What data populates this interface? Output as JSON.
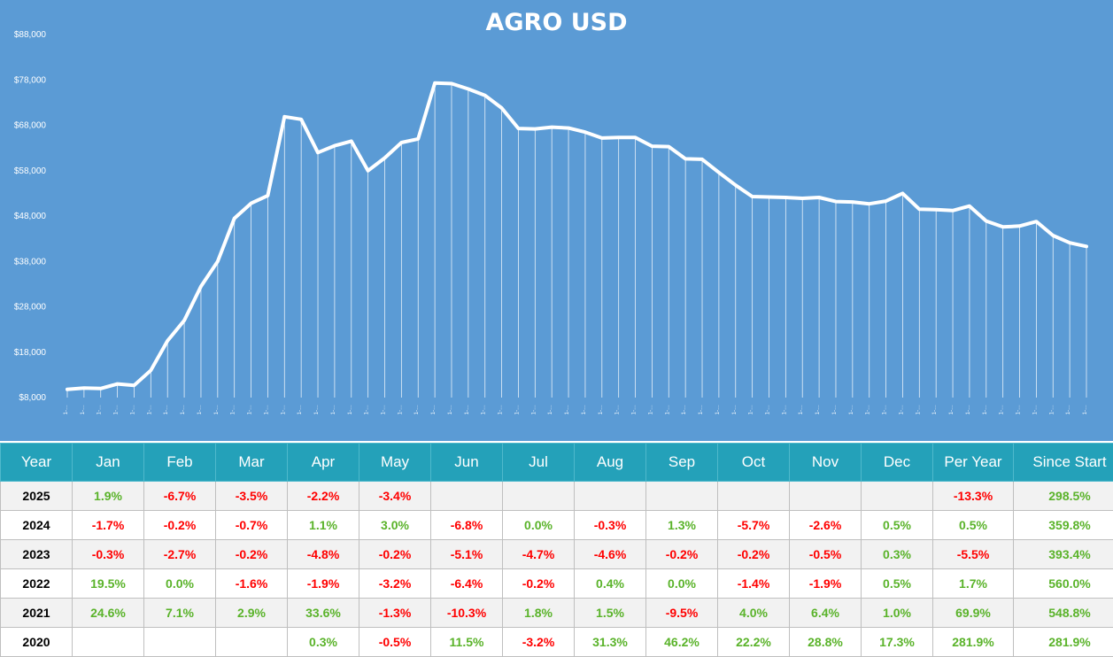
{
  "chart_data": {
    "type": "line",
    "title": "AGRO USD",
    "y_ticks": [
      "$8,000",
      "$18,000",
      "$28,000",
      "$38,000",
      "$48,000",
      "$58,000",
      "$68,000",
      "$78,000",
      "$88,000"
    ],
    "ylim": [
      8000,
      88000
    ],
    "x_tick_label": "1-…",
    "grid": false,
    "drop_lines": true,
    "line_color": "#ffffff",
    "background": "#5b9bd5",
    "values": [
      9800,
      10100,
      10000,
      11000,
      10700,
      14000,
      20500,
      25000,
      32500,
      38000,
      47500,
      50800,
      52500,
      69900,
      69300,
      62000,
      63500,
      64500,
      58000,
      60800,
      64200,
      65000,
      77300,
      77200,
      76000,
      74600,
      71800,
      67300,
      67200,
      67600,
      67400,
      66500,
      65200,
      65300,
      65300,
      63400,
      63300,
      60600,
      60500,
      57600,
      54800,
      52300,
      52200,
      52100,
      51900,
      52100,
      51200,
      51100,
      50700,
      51300,
      53000,
      49500,
      49400,
      49200,
      50200,
      46900,
      45600,
      45800,
      46800,
      43700,
      42100,
      41300
    ]
  },
  "table": {
    "headers": [
      "Year",
      "Jan",
      "Feb",
      "Mar",
      "Apr",
      "May",
      "Jun",
      "Jul",
      "Aug",
      "Sep",
      "Oct",
      "Nov",
      "Dec",
      "Per Year",
      "Since Start"
    ],
    "rows": [
      [
        "2025",
        "1.9%",
        "-6.7%",
        "-3.5%",
        "-2.2%",
        "-3.4%",
        "",
        "",
        "",
        "",
        "",
        "",
        "",
        "-13.3%",
        "298.5%"
      ],
      [
        "2024",
        "-1.7%",
        "-0.2%",
        "-0.7%",
        "1.1%",
        "3.0%",
        "-6.8%",
        "0.0%",
        "-0.3%",
        "1.3%",
        "-5.7%",
        "-2.6%",
        "0.5%",
        "0.5%",
        "359.8%"
      ],
      [
        "2023",
        "-0.3%",
        "-2.7%",
        "-0.2%",
        "-4.8%",
        "-0.2%",
        "-5.1%",
        "-4.7%",
        "-4.6%",
        "-0.2%",
        "-0.2%",
        "-0.5%",
        "0.3%",
        "-5.5%",
        "393.4%"
      ],
      [
        "2022",
        "19.5%",
        "0.0%",
        "-1.6%",
        "-1.9%",
        "-3.2%",
        "-6.4%",
        "-0.2%",
        "0.4%",
        "0.0%",
        "-1.4%",
        "-1.9%",
        "0.5%",
        "1.7%",
        "560.0%"
      ],
      [
        "2021",
        "24.6%",
        "7.1%",
        "2.9%",
        "33.6%",
        "-1.3%",
        "-10.3%",
        "1.8%",
        "1.5%",
        "-9.5%",
        "4.0%",
        "6.4%",
        "1.0%",
        "69.9%",
        "548.8%"
      ],
      [
        "2020",
        "",
        "",
        "",
        "0.3%",
        "-0.5%",
        "11.5%",
        "-3.2%",
        "31.3%",
        "46.2%",
        "22.2%",
        "28.8%",
        "17.3%",
        "281.9%",
        "281.9%"
      ]
    ],
    "colors": {
      "positive": "#5ab32a",
      "negative": "#ff0000",
      "header_bg": "#24a1b9"
    }
  }
}
